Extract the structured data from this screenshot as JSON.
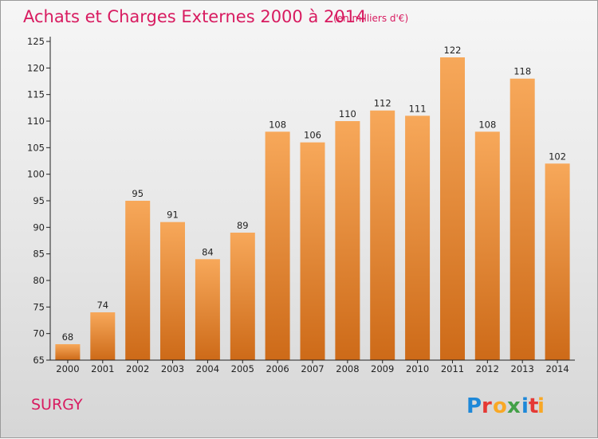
{
  "chart_data": {
    "type": "bar",
    "title": "Achats et Charges Externes 2000 à 2014",
    "subtitle": "(en milliers d'€)",
    "categories": [
      "2000",
      "2001",
      "2002",
      "2003",
      "2004",
      "2005",
      "2006",
      "2007",
      "2008",
      "2009",
      "2010",
      "2011",
      "2012",
      "2013",
      "2014"
    ],
    "values": [
      68,
      74,
      95,
      91,
      84,
      89,
      108,
      106,
      110,
      112,
      111,
      122,
      108,
      118,
      102
    ],
    "xlabel": "",
    "ylabel": "",
    "ylim": [
      65,
      125
    ],
    "yticks": [
      65,
      70,
      75,
      80,
      85,
      90,
      95,
      100,
      105,
      110,
      115,
      120,
      125
    ],
    "grid": false,
    "legend": "none",
    "bar_color_top": "#f7a85a",
    "bar_color_bottom": "#cd6a18"
  },
  "footer": {
    "town": "SURGY",
    "logo_text": "Proxiti",
    "logo_letters": [
      "P",
      "r",
      "o",
      "x",
      "i",
      "t",
      "i"
    ],
    "logo_colors": [
      "#1e88d8",
      "#e53935",
      "#f9a825",
      "#43a047",
      "#1e88d8",
      "#e53935",
      "#f9a825"
    ]
  },
  "colors": {
    "accent": "#d81b60",
    "axis": "#222222"
  }
}
